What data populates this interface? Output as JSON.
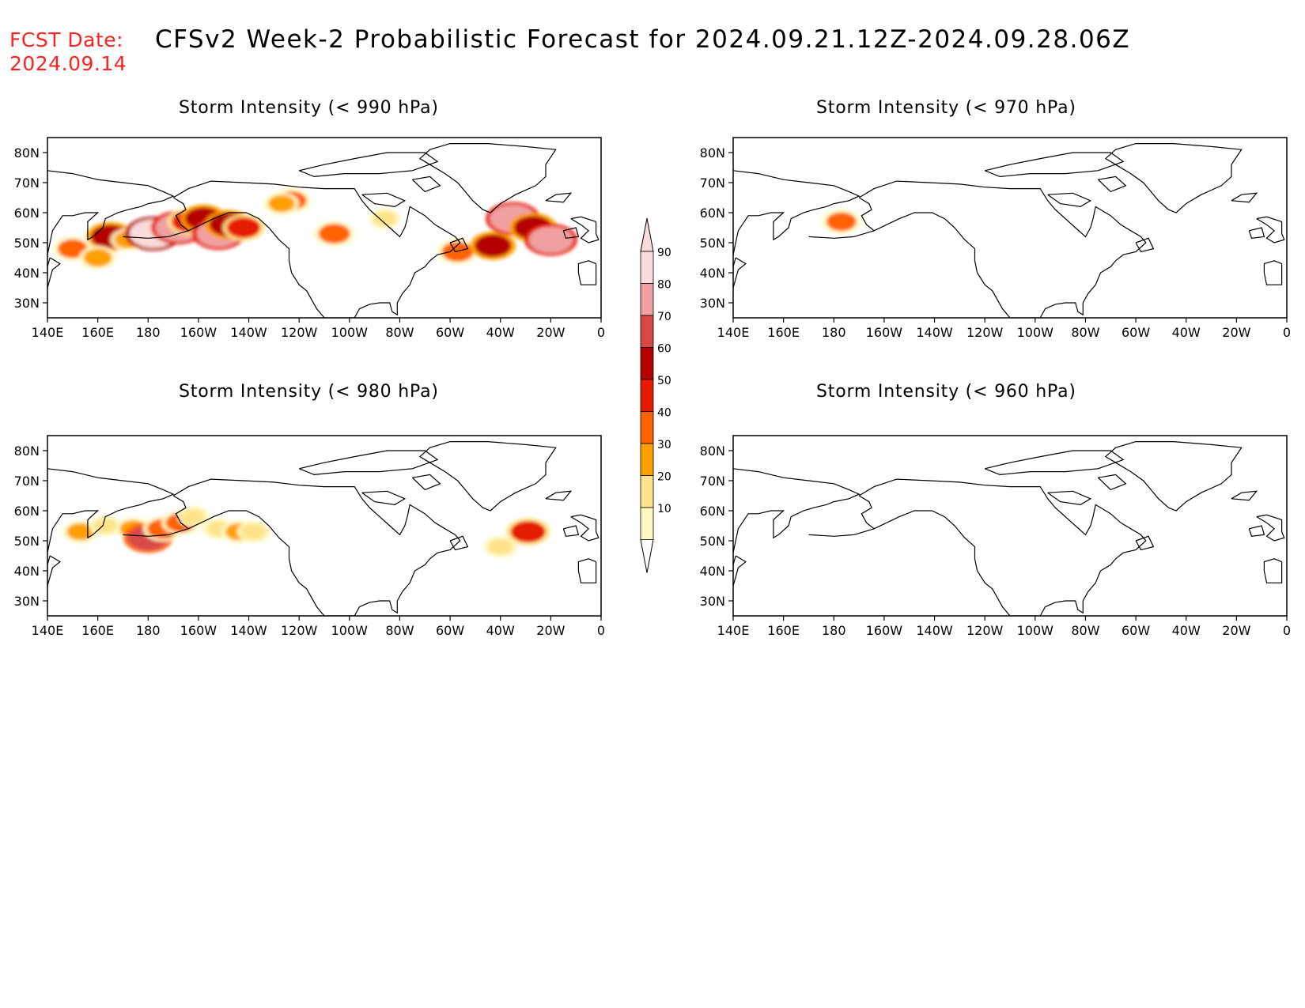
{
  "header": {
    "fcst_label": "FCST Date:",
    "fcst_date": "2024.09.14",
    "title": "CFSv2 Week-2 Probabilistic Forecast for 2024.09.21.12Z-2024.09.28.06Z"
  },
  "colors": {
    "fcst_text": "#ff2020",
    "scale": [
      "#fff7bf",
      "#ffe38a",
      "#ff9f00",
      "#ff6200",
      "#e61a00",
      "#b40000",
      "#d84848",
      "#f0a0a0",
      "#fadadb"
    ]
  },
  "map": {
    "lon_range": [
      "140E",
      "0"
    ],
    "lat_range": [
      25,
      85
    ],
    "x_tick_labels": [
      "140E",
      "160E",
      "180",
      "160W",
      "140W",
      "120W",
      "100W",
      "80W",
      "60W",
      "40W",
      "20W",
      "0"
    ],
    "y_tick_labels": [
      "80N",
      "70N",
      "60N",
      "50N",
      "40N",
      "30N"
    ]
  },
  "panels": [
    {
      "id": "p990",
      "title": "Storm Intensity (< 990 hPa)",
      "blobs": [
        {
          "lon": 165,
          "lat": 52,
          "v": 65
        },
        {
          "lon": 172,
          "lat": 51,
          "v": 30
        },
        {
          "lon": 182,
          "lat": 53,
          "v": 90
        },
        {
          "lon": 192,
          "lat": 55,
          "v": 85
        },
        {
          "lon": 196,
          "lat": 57,
          "v": 50
        },
        {
          "lon": 202,
          "lat": 58,
          "v": 60
        },
        {
          "lon": 208,
          "lat": 53,
          "v": 80
        },
        {
          "lon": 212,
          "lat": 56,
          "v": 65
        },
        {
          "lon": 218,
          "lat": 55,
          "v": 50
        },
        {
          "lon": 150,
          "lat": 48,
          "v": 40
        },
        {
          "lon": 160,
          "lat": 45,
          "v": 35
        },
        {
          "lon": 237,
          "lat": 64,
          "v": 40
        },
        {
          "lon": 233,
          "lat": 63,
          "v": 30
        },
        {
          "lon": 254,
          "lat": 53,
          "v": 45
        },
        {
          "lon": 274,
          "lat": 58,
          "v": 20
        },
        {
          "lon": 303,
          "lat": 47,
          "v": 45
        },
        {
          "lon": 317,
          "lat": 49,
          "v": 60
        },
        {
          "lon": 325,
          "lat": 58,
          "v": 85
        },
        {
          "lon": 333,
          "lat": 55,
          "v": 65
        },
        {
          "lon": 340,
          "lat": 51,
          "v": 80
        }
      ]
    },
    {
      "id": "p970",
      "title": "Storm Intensity (< 970 hPa)",
      "blobs": [
        {
          "lon": 183,
          "lat": 57,
          "v": 40
        }
      ]
    },
    {
      "id": "p980",
      "title": "Storm Intensity (< 980 hPa)",
      "blobs": [
        {
          "lon": 153,
          "lat": 53,
          "v": 30
        },
        {
          "lon": 163,
          "lat": 55,
          "v": 20
        },
        {
          "lon": 174,
          "lat": 54,
          "v": 30
        },
        {
          "lon": 180,
          "lat": 51,
          "v": 70
        },
        {
          "lon": 186,
          "lat": 54,
          "v": 45
        },
        {
          "lon": 193,
          "lat": 56,
          "v": 40
        },
        {
          "lon": 198,
          "lat": 58,
          "v": 20
        },
        {
          "lon": 208,
          "lat": 54,
          "v": 20
        },
        {
          "lon": 216,
          "lat": 53,
          "v": 30
        },
        {
          "lon": 222,
          "lat": 53,
          "v": 25
        },
        {
          "lon": 320,
          "lat": 48,
          "v": 25
        },
        {
          "lon": 331,
          "lat": 53,
          "v": 55
        }
      ]
    },
    {
      "id": "p960",
      "title": "Storm Intensity (< 960 hPa)",
      "blobs": []
    }
  ],
  "colorbar": {
    "labels": [
      "10",
      "20",
      "30",
      "40",
      "50",
      "60",
      "70",
      "80",
      "90"
    ]
  }
}
